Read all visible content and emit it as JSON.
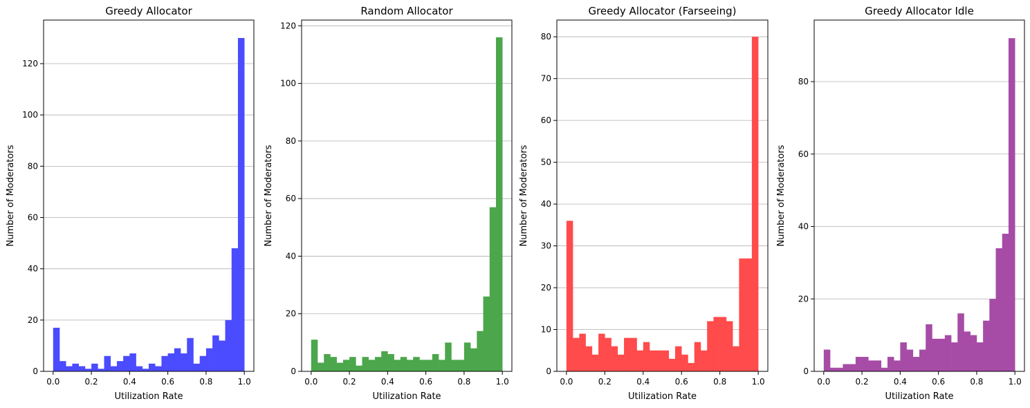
{
  "chart_data": [
    {
      "type": "bar",
      "title": "Greedy Allocator",
      "xlabel": "Utilization Rate",
      "ylabel": "Number of Moderators",
      "color": "#4b4bff",
      "bin_width": 0.0333,
      "bins_start": 0.0,
      "values": [
        17,
        4,
        2,
        3,
        2,
        1,
        3,
        1,
        6,
        2,
        4,
        6,
        7,
        2,
        1,
        3,
        2,
        6,
        7,
        9,
        7,
        13,
        3,
        6,
        9,
        14,
        12,
        20,
        48,
        130
      ],
      "xlim": [
        -0.05,
        1.05
      ],
      "ylim": [
        0,
        137
      ],
      "xticks": [
        0.0,
        0.2,
        0.4,
        0.6,
        0.8,
        1.0
      ],
      "xtick_labels": [
        "0.0",
        "0.2",
        "0.4",
        "0.6",
        "0.8",
        "1.0"
      ],
      "yticks": [
        0,
        20,
        40,
        60,
        80,
        100,
        120
      ],
      "ytick_labels": [
        "0",
        "20",
        "40",
        "60",
        "80",
        "100",
        "120"
      ],
      "grid": "y"
    },
    {
      "type": "bar",
      "title": "Random Allocator",
      "xlabel": "Utilization Rate",
      "ylabel": "Number of Moderators",
      "color": "#4ca64c",
      "bin_width": 0.0333,
      "bins_start": 0.0,
      "values": [
        11,
        3,
        6,
        5,
        3,
        4,
        5,
        2,
        5,
        4,
        5,
        7,
        6,
        4,
        5,
        4,
        5,
        4,
        4,
        6,
        4,
        10,
        4,
        4,
        10,
        8,
        14,
        26,
        57,
        116
      ],
      "xlim": [
        -0.05,
        1.05
      ],
      "ylim": [
        0,
        122
      ],
      "xticks": [
        0.0,
        0.2,
        0.4,
        0.6,
        0.8,
        1.0
      ],
      "xtick_labels": [
        "0.0",
        "0.2",
        "0.4",
        "0.6",
        "0.8",
        "1.0"
      ],
      "yticks": [
        0,
        20,
        40,
        60,
        80,
        100,
        120
      ],
      "ytick_labels": [
        "0",
        "20",
        "40",
        "60",
        "80",
        "100",
        "120"
      ],
      "grid": "y"
    },
    {
      "type": "bar",
      "title": "Greedy Allocator (Farseeing)",
      "xlabel": "Utilization Rate",
      "ylabel": "Number of Moderators",
      "color": "#ff4b4b",
      "bin_width": 0.0333,
      "bins_start": 0.0,
      "values": [
        36,
        8,
        9,
        6,
        4,
        9,
        8,
        6,
        4,
        8,
        8,
        5,
        7,
        5,
        5,
        5,
        3,
        6,
        4,
        2,
        7,
        5,
        12,
        13,
        13,
        12,
        6,
        27,
        27,
        80
      ],
      "xlim": [
        -0.05,
        1.05
      ],
      "ylim": [
        0,
        84
      ],
      "xticks": [
        0.0,
        0.2,
        0.4,
        0.6,
        0.8,
        1.0
      ],
      "xtick_labels": [
        "0.0",
        "0.2",
        "0.4",
        "0.6",
        "0.8",
        "1.0"
      ],
      "yticks": [
        0,
        10,
        20,
        30,
        40,
        50,
        60,
        70,
        80
      ],
      "ytick_labels": [
        "0",
        "10",
        "20",
        "30",
        "40",
        "50",
        "60",
        "70",
        "80"
      ],
      "grid": "y"
    },
    {
      "type": "bar",
      "title": "Greedy Allocator Idle",
      "xlabel": "Utilization Rate",
      "ylabel": "Number of Moderators",
      "color": "#a64ca6",
      "bin_width": 0.0333,
      "bins_start": 0.0,
      "values": [
        6,
        1,
        1,
        2,
        2,
        4,
        4,
        3,
        3,
        1,
        4,
        3,
        8,
        6,
        4,
        6,
        13,
        9,
        9,
        10,
        8,
        16,
        11,
        10,
        8,
        14,
        20,
        34,
        38,
        92
      ],
      "xlim": [
        -0.05,
        1.05
      ],
      "ylim": [
        0,
        97
      ],
      "xticks": [
        0.0,
        0.2,
        0.4,
        0.6,
        0.8,
        1.0
      ],
      "xtick_labels": [
        "0.0",
        "0.2",
        "0.4",
        "0.6",
        "0.8",
        "1.0"
      ],
      "yticks": [
        0,
        20,
        40,
        60,
        80
      ],
      "ytick_labels": [
        "0",
        "20",
        "40",
        "60",
        "80"
      ],
      "grid": "y"
    }
  ]
}
